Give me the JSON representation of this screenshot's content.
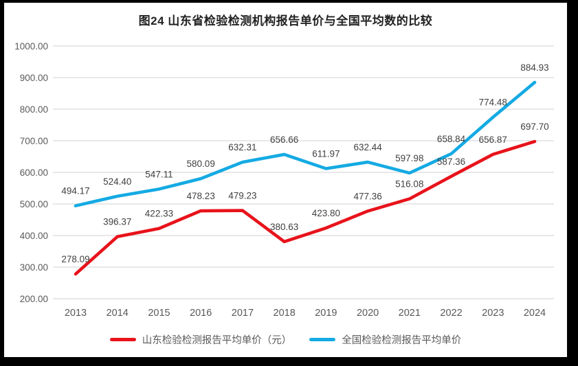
{
  "title": "图24  山东省检验检测机构报告单价与全国平均数的比较",
  "colors": {
    "shandong_red": "#e8131b",
    "national_blue": "#14aae3",
    "gridline": "#d9d9d9",
    "data_label_text": "#404040",
    "axis_text": "#595959",
    "frame": "#000000",
    "background": "#ffffff"
  },
  "chart_data": {
    "type": "line",
    "categories": [
      "2013",
      "2014",
      "2015",
      "2016",
      "2017",
      "2018",
      "2019",
      "2020",
      "2021",
      "2022",
      "2023",
      "2024"
    ],
    "series": [
      {
        "name": "山东检验检测报告平均单价（元）",
        "color_key": "shandong_red",
        "values": [
          278.09,
          396.37,
          422.33,
          478.23,
          479.23,
          380.63,
          423.8,
          477.36,
          516.08,
          587.36,
          656.87,
          697.7
        ]
      },
      {
        "name": "全国检验检测报告平均单价",
        "color_key": "national_blue",
        "values": [
          494.17,
          524.4,
          547.11,
          580.09,
          632.31,
          656.66,
          611.97,
          632.44,
          597.98,
          658.84,
          774.48,
          884.93
        ]
      }
    ],
    "title": "图24  山东省检验检测机构报告单价与全国平均数的比较",
    "xlabel": "",
    "ylabel": "",
    "ylim": [
      200,
      1000
    ],
    "ytick_step": 100,
    "ytick_labels": [
      "200.00",
      "300.00",
      "400.00",
      "500.00",
      "600.00",
      "700.00",
      "800.00",
      "900.00",
      "1000.00"
    ],
    "grid": true,
    "data_labels": "above-points",
    "legend_position": "bottom"
  }
}
